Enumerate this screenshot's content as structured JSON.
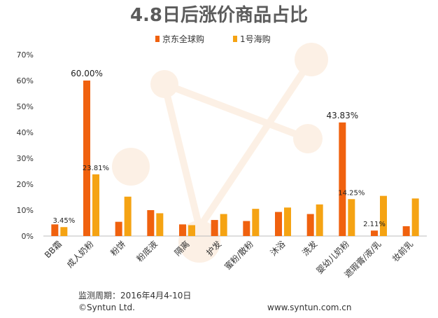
{
  "chart_data": {
    "type": "bar",
    "title": "4.8日后涨价商品占比",
    "categories": [
      "BB霜",
      "成人奶粉",
      "粉饼",
      "粉底液",
      "隔离",
      "护发",
      "蜜粉/散粉",
      "沐浴",
      "洗发",
      "婴幼儿奶粉",
      "遮瑕膏/液/乳",
      "妆前乳"
    ],
    "series": [
      {
        "name": "京东全球购",
        "color": "#f0610e",
        "values": [
          4.5,
          60.0,
          5.5,
          10.0,
          4.5,
          6.2,
          5.8,
          9.3,
          8.5,
          43.83,
          2.11,
          3.8
        ]
      },
      {
        "name": "1号海购",
        "color": "#f5a313",
        "values": [
          3.45,
          23.81,
          15.2,
          8.8,
          4.2,
          8.5,
          10.5,
          11.0,
          12.2,
          14.25,
          15.5,
          14.5
        ]
      }
    ],
    "data_labels": [
      {
        "text": "3.45%",
        "category": 0,
        "series": 1
      },
      {
        "text": "60.00%",
        "category": 1,
        "series": 0
      },
      {
        "text": "23.81%",
        "category": 1,
        "series": 1
      },
      {
        "text": "43.83%",
        "category": 9,
        "series": 0
      },
      {
        "text": "14.25%",
        "category": 9,
        "series": 1
      },
      {
        "text": "2.11%",
        "category": 10,
        "series": 0
      }
    ],
    "ylim": [
      0,
      70
    ],
    "yticks": [
      "0%",
      "10%",
      "20%",
      "30%",
      "40%",
      "50%",
      "60%",
      "70%"
    ],
    "legend_position": "top",
    "grid": false
  },
  "footer": {
    "period": "监测周期：2016年4月4-10日",
    "copyright": "©Syntun Ltd.",
    "website": "www.syntun.com.cn"
  }
}
